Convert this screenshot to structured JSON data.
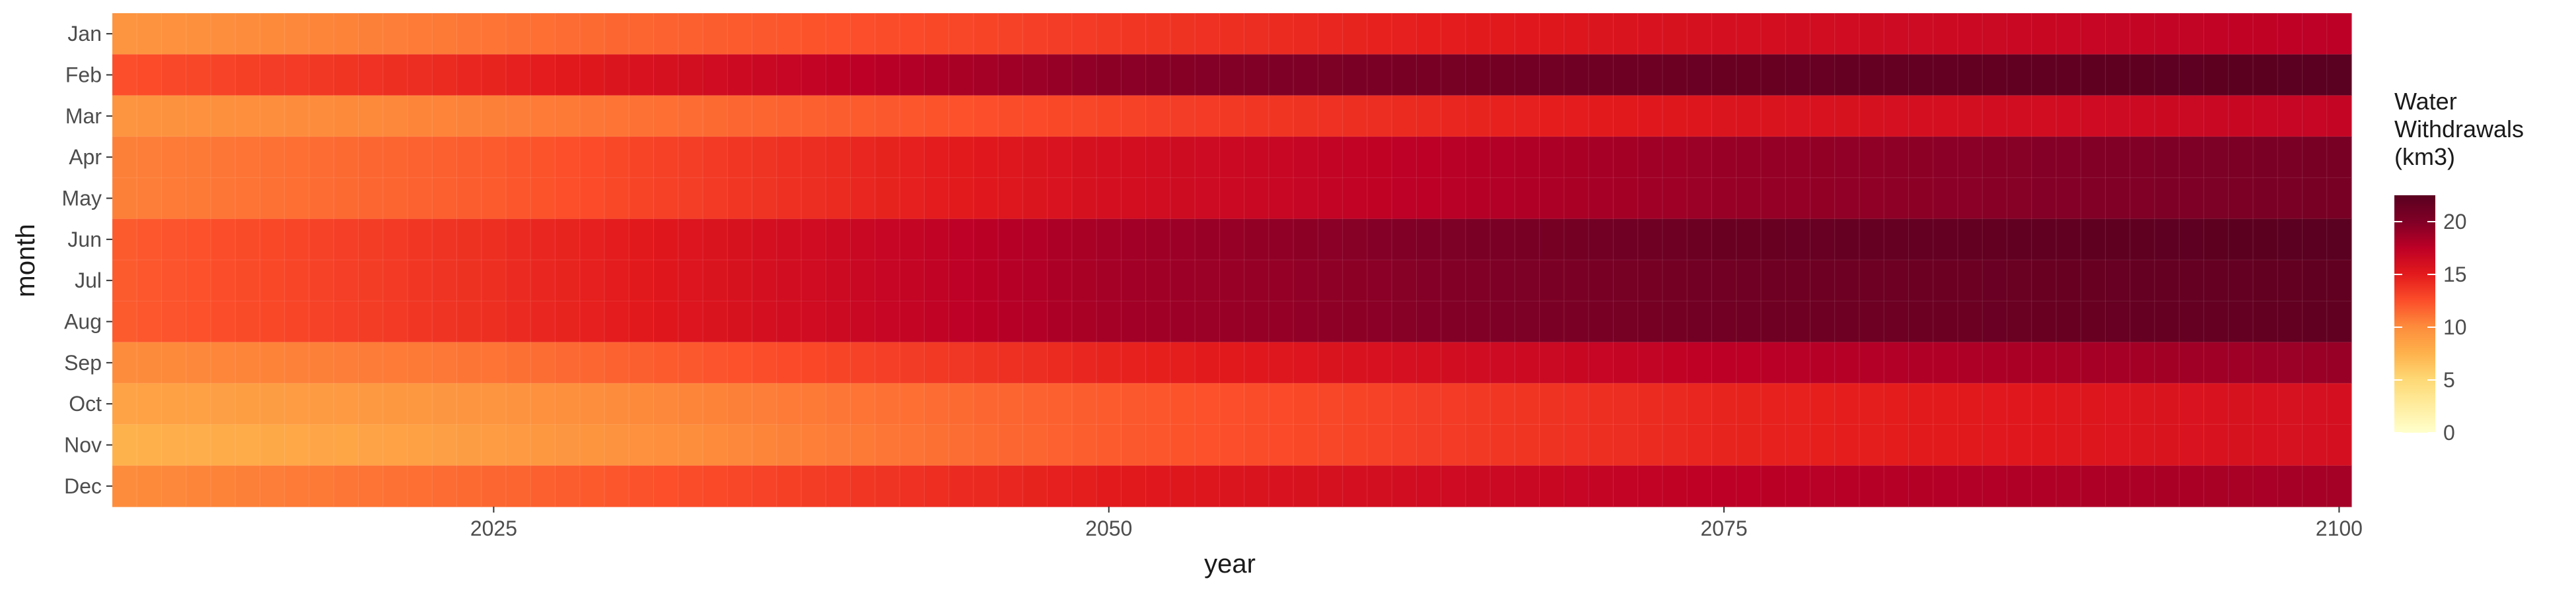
{
  "chart_data": {
    "type": "heatmap",
    "xlabel": "year",
    "ylabel": "month",
    "x_ticks": [
      2025,
      2050,
      2075,
      2100
    ],
    "xlim": [
      2010,
      2100
    ],
    "months": [
      "Jan",
      "Feb",
      "Mar",
      "Apr",
      "May",
      "Jun",
      "Jul",
      "Aug",
      "Sep",
      "Oct",
      "Nov",
      "Dec"
    ],
    "years_start": 2010,
    "years_end": 2100,
    "year_anchors": [
      2010,
      2025,
      2050,
      2075,
      2100
    ],
    "value_anchors": [
      {
        "month": "Jan",
        "values": [
          9.5,
          11,
          13.5,
          16,
          17.5
        ]
      },
      {
        "month": "Feb",
        "values": [
          12.5,
          14.5,
          19.5,
          21.5,
          22.5
        ]
      },
      {
        "month": "Mar",
        "values": [
          9.5,
          10.5,
          13,
          15.5,
          17
        ]
      },
      {
        "month": "Apr",
        "values": [
          10.5,
          12,
          16,
          19,
          20.5
        ]
      },
      {
        "month": "May",
        "values": [
          10.5,
          12,
          16,
          19,
          20.5
        ]
      },
      {
        "month": "Jun",
        "values": [
          12,
          14,
          18.5,
          21.5,
          22.5
        ]
      },
      {
        "month": "Jul",
        "values": [
          12,
          14,
          18.5,
          21,
          22
        ]
      },
      {
        "month": "Aug",
        "values": [
          12,
          14,
          18.5,
          21,
          22
        ]
      },
      {
        "month": "Sep",
        "values": [
          10,
          11,
          14.5,
          17.5,
          19
        ]
      },
      {
        "month": "Oct",
        "values": [
          8.5,
          9.5,
          12,
          14.5,
          16
        ]
      },
      {
        "month": "Nov",
        "values": [
          7.5,
          9,
          12,
          14.5,
          16
        ]
      },
      {
        "month": "Dec",
        "values": [
          10,
          11.5,
          15,
          17.5,
          18.5
        ]
      }
    ],
    "legend": {
      "title_lines": [
        "Water",
        "Withdrawals",
        "(km3)"
      ],
      "ticks": [
        0,
        5,
        10,
        15,
        20
      ],
      "range": [
        0,
        22.5
      ],
      "placement": "right"
    },
    "colorscale": [
      "#ffffcc",
      "#ffeda0",
      "#fed976",
      "#feb24c",
      "#fd8d3c",
      "#fc4e2a",
      "#e31a1c",
      "#bd0026",
      "#800026",
      "#5a0020"
    ],
    "grid": true
  }
}
